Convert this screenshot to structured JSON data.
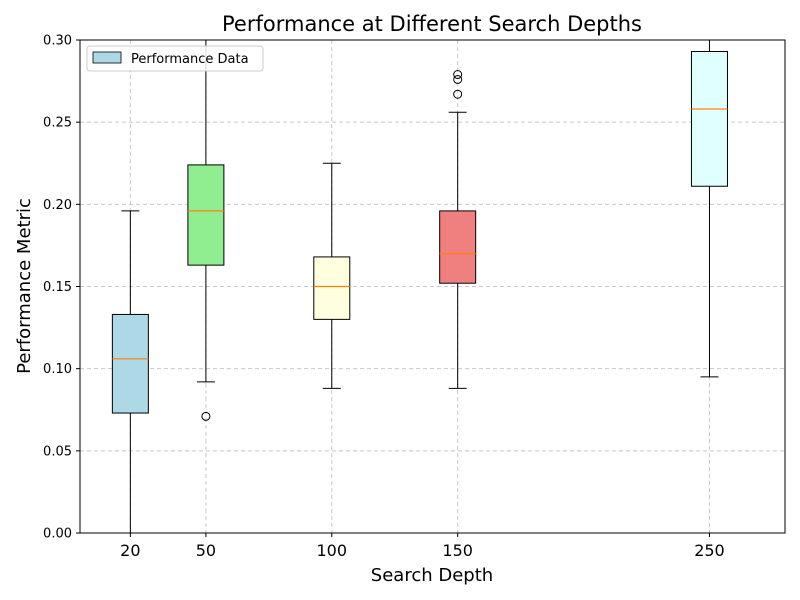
{
  "chart_data": {
    "type": "box",
    "title": "Performance at Different Search Depths",
    "xlabel": "Search Depth",
    "ylabel": "Performance Metric",
    "ylim": [
      0,
      0.3
    ],
    "xlim": [
      0,
      280
    ],
    "yticks": [
      "0.00",
      "0.05",
      "0.10",
      "0.15",
      "0.20",
      "0.25",
      "0.30"
    ],
    "grid": true,
    "legend": {
      "location": "upper-left",
      "entries": [
        "Performance Data"
      ]
    },
    "boxes": [
      {
        "x": 20,
        "label": "20",
        "whisker_low": 0.0,
        "q1": 0.073,
        "median": 0.106,
        "q3": 0.133,
        "whisker_high": 0.196,
        "outliers": [],
        "color": "#add8e6"
      },
      {
        "x": 50,
        "label": "50",
        "whisker_low": 0.092,
        "q1": 0.163,
        "median": 0.196,
        "q3": 0.224,
        "whisker_high": 0.3,
        "outliers": [
          0.071
        ],
        "color": "#90ee90"
      },
      {
        "x": 100,
        "label": "100",
        "whisker_low": 0.088,
        "q1": 0.13,
        "median": 0.15,
        "q3": 0.168,
        "whisker_high": 0.225,
        "outliers": [],
        "color": "#ffffe0"
      },
      {
        "x": 150,
        "label": "150",
        "whisker_low": 0.088,
        "q1": 0.152,
        "median": 0.17,
        "q3": 0.196,
        "whisker_high": 0.256,
        "outliers": [
          0.267,
          0.276,
          0.279
        ],
        "color": "#f08080"
      },
      {
        "x": 250,
        "label": "250",
        "whisker_low": 0.095,
        "q1": 0.211,
        "median": 0.258,
        "q3": 0.293,
        "whisker_high": 0.3,
        "outliers": [],
        "color": "#e0ffff"
      }
    ],
    "colors": {
      "median": "#ff7f0e",
      "grid": "#b0b0b0",
      "legend_swatch": "#add8e6"
    }
  }
}
